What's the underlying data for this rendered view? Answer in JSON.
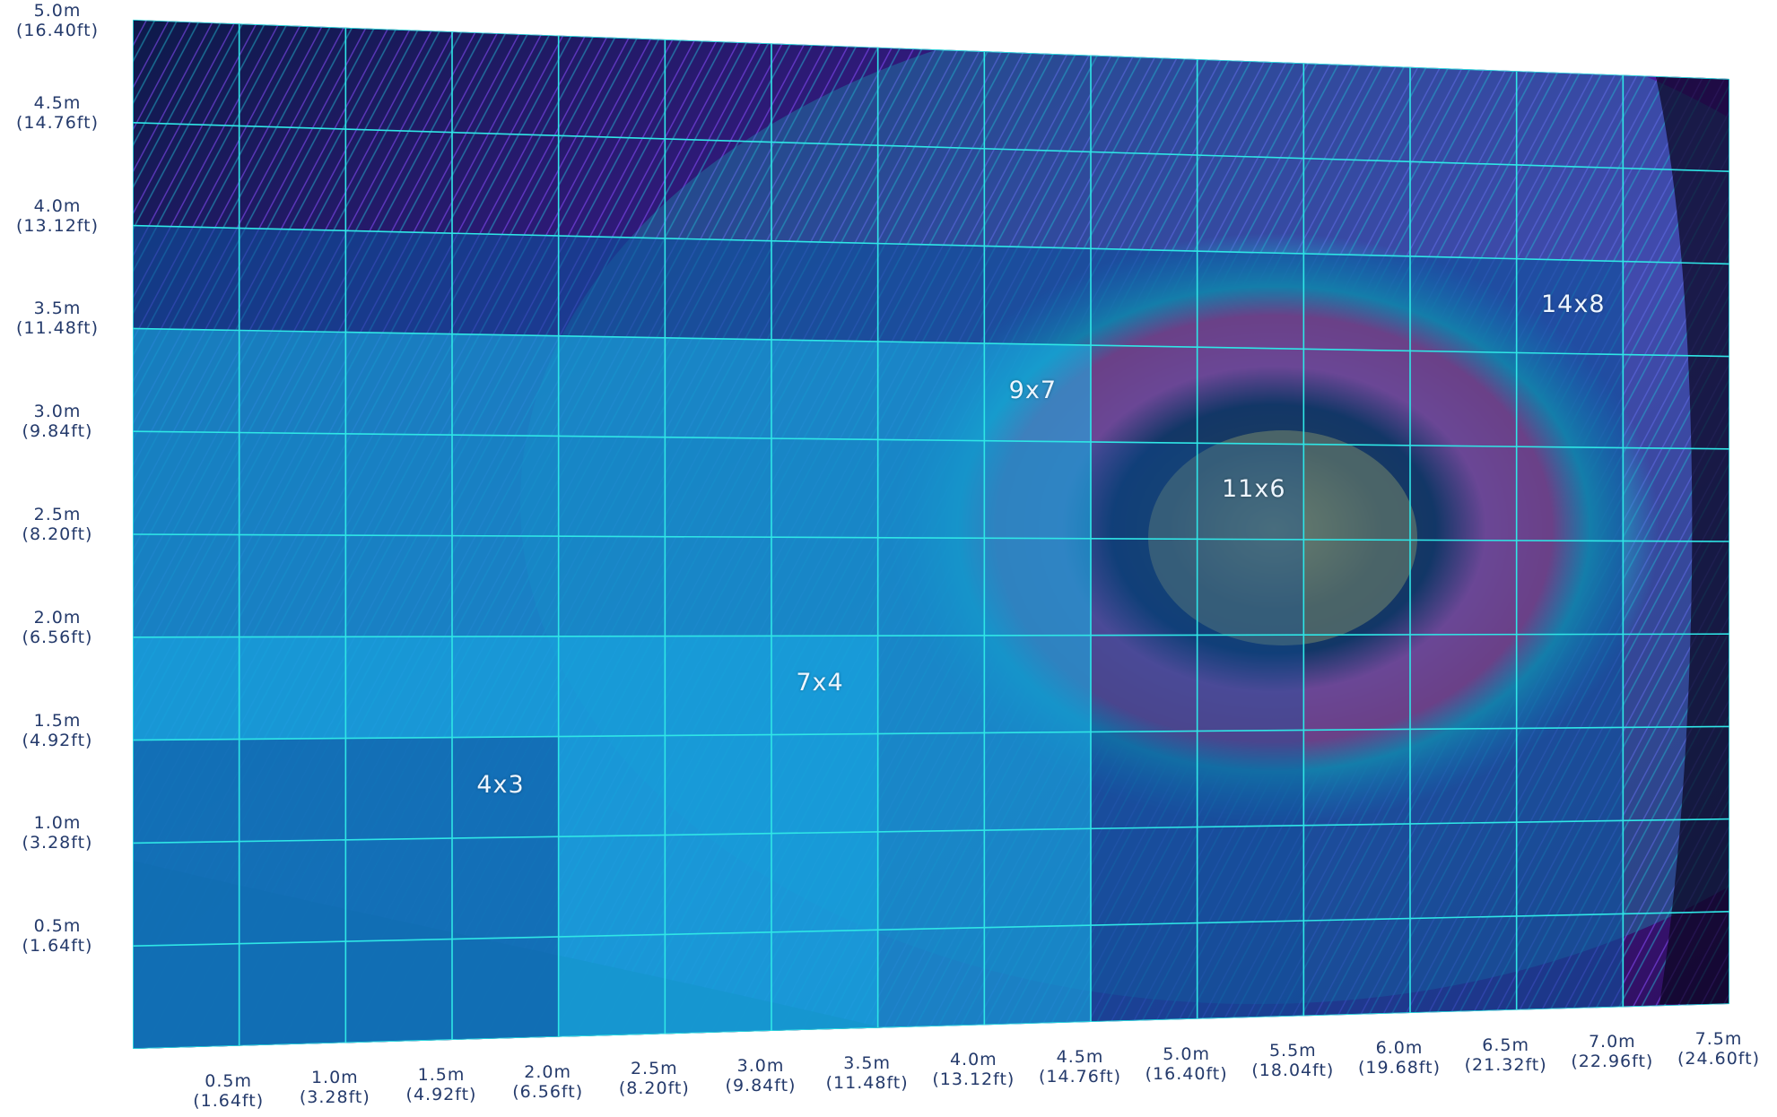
{
  "y_axis": [
    {
      "m": "0.5m",
      "ft": "(1.64ft)"
    },
    {
      "m": "1.0m",
      "ft": "(3.28ft)"
    },
    {
      "m": "1.5m",
      "ft": "(4.92ft)"
    },
    {
      "m": "2.0m",
      "ft": "(6.56ft)"
    },
    {
      "m": "2.5m",
      "ft": "(8.20ft)"
    },
    {
      "m": "3.0m",
      "ft": "(9.84ft)"
    },
    {
      "m": "3.5m",
      "ft": "(11.48ft)"
    },
    {
      "m": "4.0m",
      "ft": "(13.12ft)"
    },
    {
      "m": "4.5m",
      "ft": "(14.76ft)"
    },
    {
      "m": "5.0m",
      "ft": "(16.40ft)"
    }
  ],
  "x_axis": [
    {
      "m": "0.5m",
      "ft": "(1.64ft)"
    },
    {
      "m": "1.0m",
      "ft": "(3.28ft)"
    },
    {
      "m": "1.5m",
      "ft": "(4.92ft)"
    },
    {
      "m": "2.0m",
      "ft": "(6.56ft)"
    },
    {
      "m": "2.5m",
      "ft": "(8.20ft)"
    },
    {
      "m": "3.0m",
      "ft": "(9.84ft)"
    },
    {
      "m": "3.5m",
      "ft": "(11.48ft)"
    },
    {
      "m": "4.0m",
      "ft": "(13.12ft)"
    },
    {
      "m": "4.5m",
      "ft": "(14.76ft)"
    },
    {
      "m": "5.0m",
      "ft": "(16.40ft)"
    },
    {
      "m": "5.5m",
      "ft": "(18.04ft)"
    },
    {
      "m": "6.0m",
      "ft": "(19.68ft)"
    },
    {
      "m": "6.5m",
      "ft": "(21.32ft)"
    },
    {
      "m": "7.0m",
      "ft": "(22.96ft)"
    },
    {
      "m": "7.5m",
      "ft": "(24.60ft)"
    }
  ],
  "grid": {
    "columns": 15,
    "rows": 10
  },
  "screen_sizes": [
    {
      "label": "14x8",
      "cols": 14,
      "rows": 8
    },
    {
      "label": "11x6",
      "cols": 11,
      "rows": 6
    },
    {
      "label": "9x7",
      "cols": 9,
      "rows": 7
    },
    {
      "label": "7x4",
      "cols": 7,
      "rows": 4
    },
    {
      "label": "4x3",
      "cols": 4,
      "rows": 3
    }
  ],
  "colors": {
    "grid_line": "#2fe6e6",
    "axis_text": "#243a6b",
    "overlay_dark": "#0f4f9c",
    "overlay_light": "#19b4ea",
    "background_image": "peacock-feather"
  }
}
